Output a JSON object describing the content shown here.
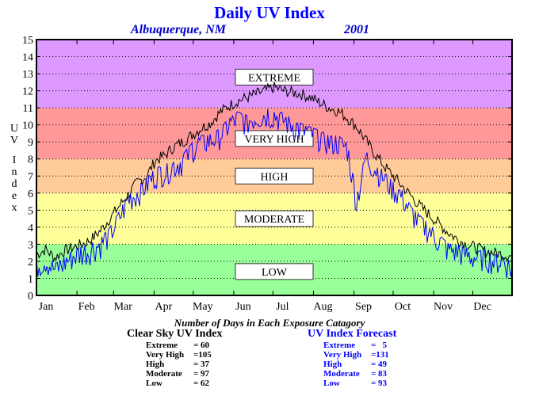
{
  "title": "Daily UV Index",
  "location": "Albuquerque, NM",
  "year": "2001",
  "ylabel": "UV Index",
  "chart_data": {
    "type": "line",
    "title": "Daily UV Index",
    "ylabel": "UV Index",
    "ylim": [
      0,
      15
    ],
    "xlim": [
      1,
      365
    ],
    "yticks": [
      0,
      1,
      2,
      3,
      4,
      5,
      6,
      7,
      8,
      9,
      10,
      11,
      12,
      13,
      14,
      15
    ],
    "xticks": [
      {
        "day": 1,
        "label": "Jan"
      },
      {
        "day": 32,
        "label": "Feb"
      },
      {
        "day": 60,
        "label": "Mar"
      },
      {
        "day": 91,
        "label": "Apr"
      },
      {
        "day": 121,
        "label": "May"
      },
      {
        "day": 152,
        "label": "Jun"
      },
      {
        "day": 182,
        "label": "Jul"
      },
      {
        "day": 213,
        "label": "Aug"
      },
      {
        "day": 244,
        "label": "Sep"
      },
      {
        "day": 274,
        "label": "Oct"
      },
      {
        "day": 305,
        "label": "Nov"
      },
      {
        "day": 335,
        "label": "Dec"
      }
    ],
    "grid": "dotted horizontal",
    "bands": [
      {
        "label": "LOW",
        "from": 0,
        "to": 3,
        "color": "#99ff99",
        "label_y": 1.4
      },
      {
        "label": "MODERATE",
        "from": 3,
        "to": 6,
        "color": "#ffff99",
        "label_y": 4.5
      },
      {
        "label": "HIGH",
        "from": 6,
        "to": 8,
        "color": "#ffcc99",
        "label_y": 7.0
      },
      {
        "label": "VERY HIGH",
        "from": 8,
        "to": 11,
        "color": "#ff9999",
        "label_y": 9.2
      },
      {
        "label": "EXTREME",
        "from": 11,
        "to": 15,
        "color": "#dd99ff",
        "label_y": 12.8
      }
    ],
    "series": [
      {
        "name": "Clear Sky UV Index",
        "color": "#000000",
        "x": [
          1,
          8,
          15,
          22,
          29,
          36,
          43,
          50,
          57,
          64,
          71,
          78,
          85,
          92,
          99,
          106,
          113,
          120,
          127,
          134,
          141,
          148,
          155,
          162,
          169,
          176,
          183,
          190,
          197,
          204,
          211,
          218,
          225,
          232,
          239,
          246,
          253,
          260,
          267,
          274,
          281,
          288,
          295,
          302,
          309,
          316,
          323,
          330,
          337,
          344,
          351,
          358,
          365
        ],
        "values": [
          2.4,
          2.7,
          2.2,
          2.6,
          2.8,
          3.0,
          3.3,
          3.8,
          4.5,
          5.2,
          5.9,
          6.6,
          7.0,
          7.9,
          8.2,
          8.7,
          9.0,
          9.4,
          9.8,
          10.1,
          10.7,
          11.1,
          11.4,
          11.6,
          11.8,
          12.0,
          12.2,
          12.0,
          11.9,
          11.8,
          11.6,
          11.3,
          11.0,
          10.8,
          10.4,
          9.9,
          9.1,
          8.3,
          7.6,
          7.0,
          6.4,
          5.8,
          5.2,
          4.7,
          4.2,
          3.7,
          3.3,
          3.0,
          2.8,
          2.6,
          2.5,
          2.4,
          2.3
        ]
      },
      {
        "name": "UV Index Forecast",
        "color": "#0000ff",
        "x": [
          1,
          8,
          15,
          22,
          29,
          36,
          43,
          50,
          57,
          64,
          71,
          78,
          85,
          92,
          99,
          106,
          113,
          120,
          127,
          134,
          141,
          148,
          155,
          162,
          169,
          176,
          183,
          190,
          197,
          204,
          211,
          218,
          225,
          232,
          239,
          246,
          253,
          260,
          267,
          274,
          281,
          288,
          295,
          302,
          309,
          316,
          323,
          330,
          337,
          344,
          351,
          358,
          365
        ],
        "values": [
          1.8,
          2.1,
          1.5,
          1.9,
          2.3,
          2.5,
          2.7,
          3.0,
          3.6,
          4.5,
          5.6,
          6.0,
          6.5,
          7.1,
          7.3,
          7.6,
          7.9,
          8.6,
          9.0,
          9.1,
          9.4,
          10.0,
          10.4,
          10.2,
          10.5,
          10.6,
          10.6,
          10.3,
          10.0,
          9.7,
          9.5,
          9.3,
          9.0,
          9.0,
          8.6,
          5.5,
          8.1,
          7.5,
          6.9,
          6.3,
          5.8,
          4.8,
          4.3,
          3.8,
          3.2,
          2.7,
          2.6,
          2.4,
          2.2,
          2.3,
          2.0,
          2.1,
          1.5
        ]
      }
    ]
  },
  "summary": {
    "title": "Number of Days in Each Exposure Catagory",
    "clear_sky": {
      "header": "Clear Sky UV Index",
      "rows": [
        {
          "label": "Extreme",
          "value": "= 60"
        },
        {
          "label": "Very High",
          "value": "=105"
        },
        {
          "label": "High",
          "value": "= 37"
        },
        {
          "label": "Moderate",
          "value": "= 97"
        },
        {
          "label": "Low",
          "value": "= 62"
        }
      ]
    },
    "forecast": {
      "header": "UV Index Forecast",
      "rows": [
        {
          "label": "Extreme",
          "value": "=   5"
        },
        {
          "label": "Very High",
          "value": "=131"
        },
        {
          "label": "High",
          "value": "= 49"
        },
        {
          "label": "Moderate",
          "value": "= 83"
        },
        {
          "label": "Low",
          "value": "= 93"
        }
      ]
    }
  }
}
